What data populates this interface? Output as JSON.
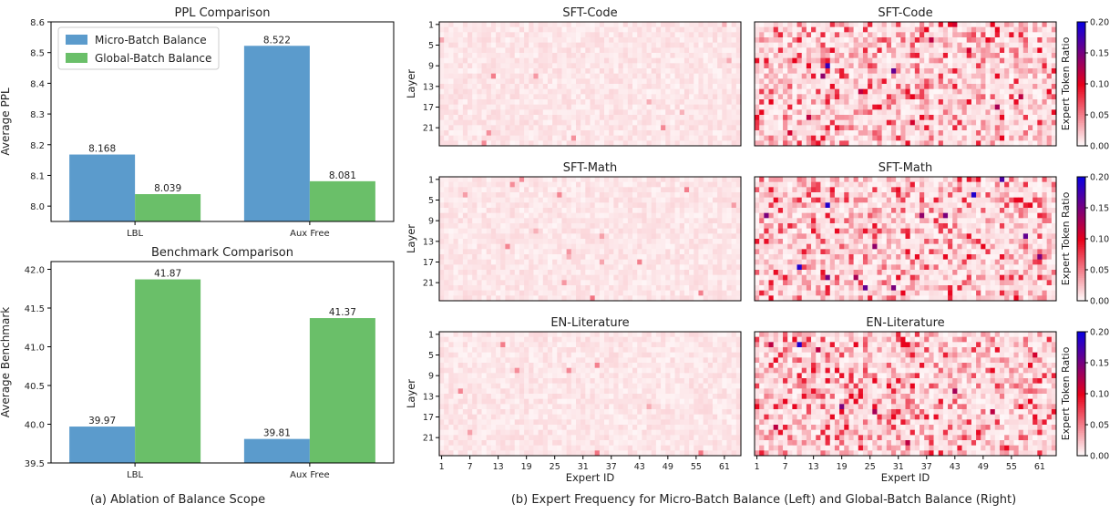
{
  "captions": {
    "a": "(a) Ablation of Balance Scope",
    "b": "(b) Expert Frequency for Micro-Batch Balance (Left) and Global-Batch Balance (Right)"
  },
  "colors": {
    "micro": "#5b9bcc",
    "global": "#6abf69",
    "heat_low": "#ffffff",
    "heat_mid": "#e8001a",
    "heat_high": "#0b00e0"
  },
  "chart_data": [
    {
      "type": "bar",
      "title": "PPL Comparison",
      "ylabel": "Average PPL",
      "categories": [
        "LBL",
        "Aux Free"
      ],
      "series": [
        {
          "name": "Micro-Batch Balance",
          "values": [
            8.168,
            8.522
          ]
        },
        {
          "name": "Global-Batch Balance",
          "values": [
            8.039,
            8.081
          ]
        }
      ],
      "labels": [
        [
          "8.168",
          "8.522"
        ],
        [
          "8.039",
          "8.081"
        ]
      ],
      "ylim": [
        7.95,
        8.6
      ],
      "yticks": [
        "8.0",
        "8.1",
        "8.2",
        "8.3",
        "8.4",
        "8.5",
        "8.6"
      ],
      "legend": "top-left"
    },
    {
      "type": "bar",
      "title": "Benchmark Comparison",
      "ylabel": "Average Benchmark",
      "categories": [
        "LBL",
        "Aux Free"
      ],
      "series": [
        {
          "name": "Micro-Batch Balance",
          "values": [
            39.97,
            39.81
          ]
        },
        {
          "name": "Global-Batch Balance",
          "values": [
            41.87,
            41.37
          ]
        }
      ],
      "labels": [
        [
          "39.97",
          "39.81"
        ],
        [
          "41.87",
          "41.37"
        ]
      ],
      "ylim": [
        39.5,
        42.1
      ],
      "yticks": [
        "39.5",
        "40.0",
        "40.5",
        "41.0",
        "41.5",
        "42.0"
      ]
    },
    {
      "type": "heatmap",
      "panels": [
        {
          "title": "SFT-Code",
          "side": "micro",
          "seed": 11,
          "outliers": []
        },
        {
          "title": "SFT-Code",
          "side": "global",
          "seed": 12,
          "outliers": [
            [
              16,
              9,
              0.18
            ],
            [
              30,
              10,
              0.16
            ],
            [
              15,
              11,
              0.14
            ],
            [
              38,
              4,
              0.12
            ],
            [
              43,
              1,
              0.11
            ],
            [
              12,
              19,
              0.12
            ],
            [
              52,
              17,
              0.13
            ],
            [
              57,
              15,
              0.12
            ],
            [
              8,
              22,
              0.11
            ],
            [
              23,
              14,
              0.12
            ],
            [
              34,
              20,
              0.11
            ],
            [
              46,
              6,
              0.11
            ]
          ]
        },
        {
          "title": "SFT-Math",
          "side": "micro",
          "seed": 21,
          "outliers": []
        },
        {
          "title": "SFT-Math",
          "side": "global",
          "seed": 22,
          "outliers": [
            [
              16,
              6,
              0.19
            ],
            [
              47,
              4,
              0.19
            ],
            [
              53,
              1,
              0.17
            ],
            [
              10,
              18,
              0.19
            ],
            [
              16,
              20,
              0.15
            ],
            [
              41,
              8,
              0.15
            ],
            [
              26,
              14,
              0.14
            ],
            [
              22,
              20,
              0.13
            ],
            [
              36,
              8,
              0.14
            ],
            [
              58,
              12,
              0.16
            ],
            [
              3,
              8,
              0.15
            ],
            [
              61,
              16,
              0.15
            ],
            [
              24,
              22,
              0.16
            ],
            [
              30,
              22,
              0.15
            ]
          ]
        },
        {
          "title": "EN-Literature",
          "side": "micro",
          "seed": 31,
          "outliers": []
        },
        {
          "title": "EN-Literature",
          "side": "global",
          "seed": 32,
          "outliers": [
            [
              10,
              3,
              0.19
            ],
            [
              19,
              15,
              0.15
            ],
            [
              4,
              3,
              0.12
            ],
            [
              14,
              4,
              0.12
            ],
            [
              43,
              12,
              0.13
            ],
            [
              26,
              16,
              0.13
            ],
            [
              5,
              19,
              0.12
            ],
            [
              51,
              16,
              0.12
            ],
            [
              33,
              22,
              0.12
            ],
            [
              60,
              5,
              0.11
            ]
          ]
        }
      ],
      "xlabel": "Expert ID",
      "ylabel": "Layer",
      "xticks": [
        "1",
        "7",
        "13",
        "19",
        "25",
        "31",
        "37",
        "43",
        "49",
        "55",
        "61"
      ],
      "yticks": [
        "1",
        "5",
        "9",
        "13",
        "17",
        "21"
      ],
      "colorbar_label": "Expert Token Ratio",
      "colorbar_ticks": [
        "0.00",
        "0.05",
        "0.10",
        "0.15",
        "0.20"
      ],
      "vmin": 0,
      "vmax": 0.2,
      "experts": 64,
      "layers": 24
    }
  ]
}
